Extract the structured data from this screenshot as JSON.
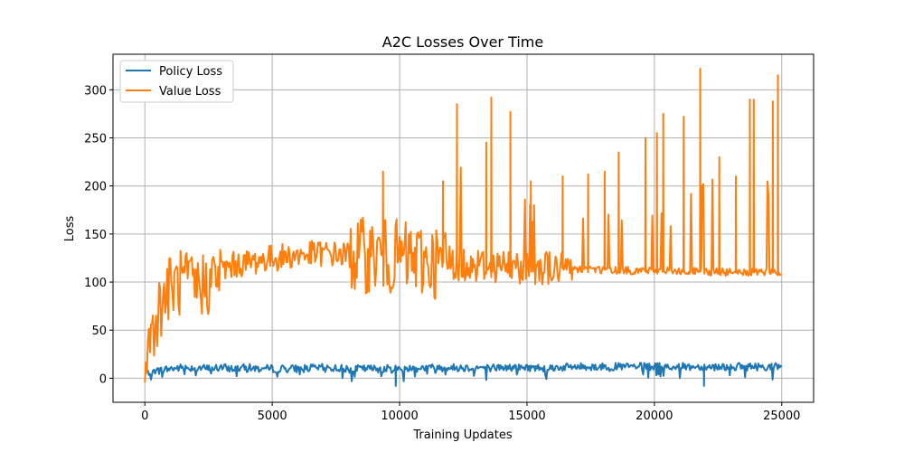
{
  "chart_data": {
    "type": "line",
    "title": "A2C Losses Over Time",
    "xlabel": "Training Updates",
    "ylabel": "Loss",
    "xlim": [
      -1250,
      26250
    ],
    "ylim": [
      -25,
      337
    ],
    "xticks": [
      0,
      5000,
      10000,
      15000,
      20000,
      25000
    ],
    "yticks": [
      0,
      50,
      100,
      150,
      200,
      250,
      300
    ],
    "xtick_labels": [
      "0",
      "5000",
      "10000",
      "15000",
      "20000",
      "25000"
    ],
    "ytick_labels": [
      "0",
      "50",
      "100",
      "150",
      "200",
      "250",
      "300"
    ],
    "grid": true,
    "legend_position": "top-left",
    "series": [
      {
        "name": "Policy Loss",
        "color": "#1f77b4",
        "x": [
          0,
          500,
          1000,
          1500,
          2000,
          2500,
          3000,
          3500,
          4000,
          4500,
          5000,
          6000,
          7000,
          8000,
          9000,
          10000,
          11000,
          12000,
          13000,
          14000,
          15000,
          16000,
          17000,
          18000,
          19000,
          20000,
          21000,
          22000,
          23000,
          24000,
          25000
        ],
        "y": [
          5,
          8,
          10,
          11,
          11,
          10,
          11,
          10,
          11,
          10,
          10,
          10,
          11,
          10,
          10,
          10,
          11,
          11,
          11,
          11,
          11,
          11,
          12,
          12,
          12,
          12,
          12,
          12,
          12,
          12,
          12
        ]
      },
      {
        "name": "Value Loss",
        "color": "#ff7f0e",
        "x": [
          0,
          250,
          500,
          750,
          1000,
          1500,
          2000,
          2500,
          3000,
          3500,
          4000,
          5000,
          6000,
          7000,
          8000,
          9000,
          10000,
          11000,
          12000,
          13000,
          14000,
          15000,
          16000,
          17000,
          18000,
          19000,
          20000,
          21000,
          22000,
          23000,
          24000,
          25000
        ],
        "y": [
          25,
          45,
          70,
          85,
          95,
          100,
          95,
          100,
          112,
          118,
          120,
          125,
          128,
          130,
          128,
          128,
          125,
          122,
          120,
          118,
          117,
          116,
          115,
          114,
          113,
          112,
          112,
          111,
          111,
          110,
          110,
          110
        ]
      }
    ],
    "spikes": [
      {
        "series": 1,
        "x": 9350,
        "y": 215
      },
      {
        "series": 1,
        "x": 11700,
        "y": 205
      },
      {
        "series": 1,
        "x": 12250,
        "y": 285
      },
      {
        "series": 1,
        "x": 13400,
        "y": 245
      },
      {
        "series": 1,
        "x": 13600,
        "y": 292
      },
      {
        "series": 1,
        "x": 14350,
        "y": 277
      },
      {
        "series": 1,
        "x": 15150,
        "y": 205
      },
      {
        "series": 1,
        "x": 16400,
        "y": 210
      },
      {
        "series": 1,
        "x": 17400,
        "y": 212
      },
      {
        "series": 1,
        "x": 18050,
        "y": 215
      },
      {
        "series": 1,
        "x": 18600,
        "y": 235
      },
      {
        "series": 1,
        "x": 19650,
        "y": 250
      },
      {
        "series": 1,
        "x": 20100,
        "y": 255
      },
      {
        "series": 1,
        "x": 20350,
        "y": 275
      },
      {
        "series": 1,
        "x": 21150,
        "y": 272
      },
      {
        "series": 1,
        "x": 21800,
        "y": 322
      },
      {
        "series": 1,
        "x": 22550,
        "y": 230
      },
      {
        "series": 1,
        "x": 23200,
        "y": 210
      },
      {
        "series": 1,
        "x": 23750,
        "y": 290
      },
      {
        "series": 1,
        "x": 23900,
        "y": 290
      },
      {
        "series": 1,
        "x": 24650,
        "y": 288
      },
      {
        "series": 1,
        "x": 24850,
        "y": 315
      },
      {
        "series": 0,
        "x": 9850,
        "y": -8
      },
      {
        "series": 0,
        "x": 21950,
        "y": -8
      }
    ]
  }
}
